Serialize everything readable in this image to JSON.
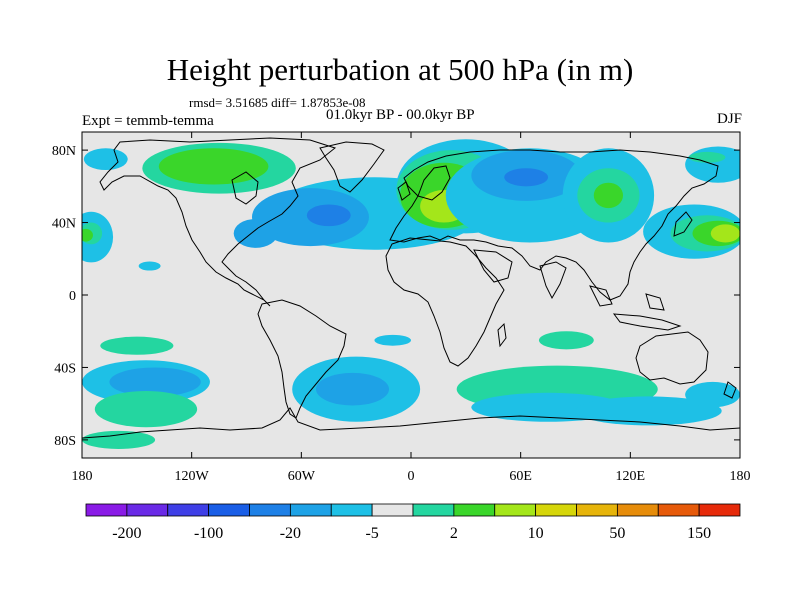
{
  "title": "Height perturbation at 500 hPa (in m)",
  "rmsd_line": "rmsd= 3.51685 diff= 1.87853e-08",
  "period": "01.0kyr BP - 00.0kyr BP",
  "experiment": "Expt = temmb-temma",
  "season": "DJF",
  "chart_data": {
    "type": "heatmap",
    "projection": "cylindrical equidistant",
    "xlabel": "",
    "ylabel": "",
    "xlim": [
      -180,
      180
    ],
    "ylim": [
      -90,
      90
    ],
    "x_ticks": [
      {
        "value": -180,
        "label": "180"
      },
      {
        "value": -120,
        "label": "120W"
      },
      {
        "value": -60,
        "label": "60W"
      },
      {
        "value": 0,
        "label": "0"
      },
      {
        "value": 60,
        "label": "60E"
      },
      {
        "value": 120,
        "label": "120E"
      },
      {
        "value": 180,
        "label": "180"
      }
    ],
    "y_ticks": [
      {
        "value": 80,
        "label": "80N"
      },
      {
        "value": 40,
        "label": "40N"
      },
      {
        "value": 0,
        "label": "0"
      },
      {
        "value": -40,
        "label": "40S"
      },
      {
        "value": -80,
        "label": "80S"
      }
    ],
    "colorbar": {
      "colors": [
        "#8a1be6",
        "#6a2ae6",
        "#3f3fe6",
        "#1a5ee6",
        "#1e80e6",
        "#1ea2e6",
        "#1ec0e6",
        "#e6e6e6",
        "#24d6a0",
        "#3ad62a",
        "#a4e61a",
        "#d6d60a",
        "#e6b40a",
        "#e68c0a",
        "#e65a0a",
        "#e62a0a"
      ],
      "labels": [
        {
          "after_box": 1,
          "text": "-200"
        },
        {
          "after_box": 3,
          "text": "-100"
        },
        {
          "after_box": 5,
          "text": "-20"
        },
        {
          "after_box": 7,
          "text": "-5"
        },
        {
          "after_box": 9,
          "text": "2"
        },
        {
          "after_box": 11,
          "text": "10"
        },
        {
          "after_box": 13,
          "text": "50"
        },
        {
          "after_box": 15,
          "text": "150"
        }
      ]
    },
    "background_color": "#e6e6e6",
    "regions": [
      {
        "lon": -175,
        "lat": 32,
        "rx": 12,
        "ry": 14,
        "color": "#1ec0e6"
      },
      {
        "lon": -175,
        "lat": 34,
        "rx": 6,
        "ry": 6,
        "color": "#24d6a0"
      },
      {
        "lon": -178,
        "lat": 33,
        "rx": 4,
        "ry": 3.5,
        "color": "#3ad62a"
      },
      {
        "lon": -143,
        "lat": 16,
        "rx": 6,
        "ry": 2.5,
        "color": "#1ec0e6"
      },
      {
        "lon": -167,
        "lat": 75,
        "rx": 12,
        "ry": 6,
        "color": "#1ec0e6"
      },
      {
        "lon": -105,
        "lat": 70,
        "rx": 42,
        "ry": 14,
        "color": "#24d6a0"
      },
      {
        "lon": -108,
        "lat": 71,
        "rx": 30,
        "ry": 10,
        "color": "#3ad62a"
      },
      {
        "lon": -20,
        "lat": 45,
        "rx": 58,
        "ry": 20,
        "color": "#1ec0e6"
      },
      {
        "lon": -55,
        "lat": 43,
        "rx": 32,
        "ry": 16,
        "color": "#1ea2e6"
      },
      {
        "lon": -45,
        "lat": 44,
        "rx": 12,
        "ry": 6,
        "color": "#1e80e6"
      },
      {
        "lon": -85,
        "lat": 34,
        "rx": 12,
        "ry": 8,
        "color": "#1ea2e6"
      },
      {
        "lon": 30,
        "lat": 60,
        "rx": 38,
        "ry": 26,
        "color": "#1ec0e6"
      },
      {
        "lon": 22,
        "lat": 58,
        "rx": 30,
        "ry": 22,
        "color": "#24d6a0"
      },
      {
        "lon": 18,
        "lat": 55,
        "rx": 24,
        "ry": 18,
        "color": "#3ad62a"
      },
      {
        "lon": 18,
        "lat": 49,
        "rx": 13,
        "ry": 9,
        "color": "#a4e61a"
      },
      {
        "lon": 65,
        "lat": 55,
        "rx": 46,
        "ry": 26,
        "color": "#1ec0e6"
      },
      {
        "lon": 63,
        "lat": 66,
        "rx": 30,
        "ry": 14,
        "color": "#1ea2e6"
      },
      {
        "lon": 63,
        "lat": 65,
        "rx": 12,
        "ry": 5,
        "color": "#1e80e6"
      },
      {
        "lon": 108,
        "lat": 55,
        "rx": 25,
        "ry": 26,
        "color": "#1ec0e6"
      },
      {
        "lon": 108,
        "lat": 55,
        "rx": 17,
        "ry": 15,
        "color": "#24d6a0"
      },
      {
        "lon": 108,
        "lat": 55,
        "rx": 8,
        "ry": 7,
        "color": "#3ad62a"
      },
      {
        "lon": 155,
        "lat": 35,
        "rx": 28,
        "ry": 15,
        "color": "#1ec0e6"
      },
      {
        "lon": 162,
        "lat": 34,
        "rx": 20,
        "ry": 10,
        "color": "#24d6a0"
      },
      {
        "lon": 168,
        "lat": 34,
        "rx": 14,
        "ry": 7,
        "color": "#3ad62a"
      },
      {
        "lon": 172,
        "lat": 34,
        "rx": 8,
        "ry": 5,
        "color": "#a4e61a"
      },
      {
        "lon": 168,
        "lat": 72,
        "rx": 18,
        "ry": 10,
        "color": "#1ec0e6"
      },
      {
        "lon": 162,
        "lat": 76,
        "rx": 10,
        "ry": 3,
        "color": "#24d6a0"
      },
      {
        "lon": -150,
        "lat": -28,
        "rx": 20,
        "ry": 5,
        "color": "#24d6a0"
      },
      {
        "lon": -145,
        "lat": -48,
        "rx": 35,
        "ry": 12,
        "color": "#1ec0e6"
      },
      {
        "lon": -140,
        "lat": -48,
        "rx": 25,
        "ry": 8,
        "color": "#1ea2e6"
      },
      {
        "lon": -145,
        "lat": -63,
        "rx": 28,
        "ry": 10,
        "color": "#24d6a0"
      },
      {
        "lon": -30,
        "lat": -52,
        "rx": 35,
        "ry": 18,
        "color": "#1ec0e6"
      },
      {
        "lon": -32,
        "lat": -52,
        "rx": 20,
        "ry": 9,
        "color": "#1ea2e6"
      },
      {
        "lon": -10,
        "lat": -25,
        "rx": 10,
        "ry": 3,
        "color": "#1ec0e6"
      },
      {
        "lon": 80,
        "lat": -52,
        "rx": 55,
        "ry": 13,
        "color": "#24d6a0"
      },
      {
        "lon": 75,
        "lat": -62,
        "rx": 42,
        "ry": 8,
        "color": "#1ec0e6"
      },
      {
        "lon": 85,
        "lat": -25,
        "rx": 15,
        "ry": 5,
        "color": "#24d6a0"
      },
      {
        "lon": 130,
        "lat": -64,
        "rx": 40,
        "ry": 8,
        "color": "#1ec0e6"
      },
      {
        "lon": 165,
        "lat": -55,
        "rx": 15,
        "ry": 7,
        "color": "#1ec0e6"
      },
      {
        "lon": -160,
        "lat": -80,
        "rx": 20,
        "ry": 5,
        "color": "#24d6a0"
      }
    ]
  }
}
